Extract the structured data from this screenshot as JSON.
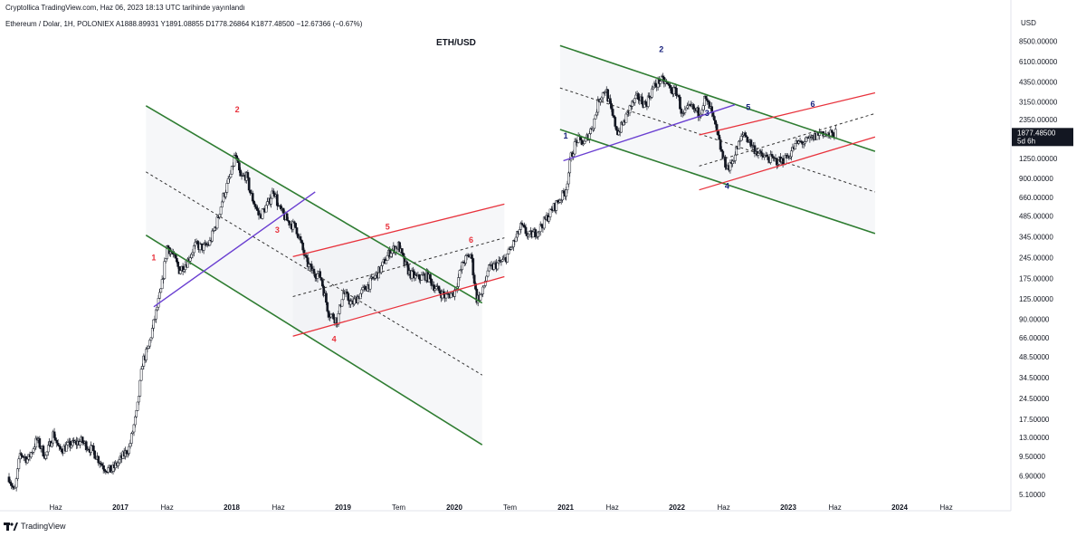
{
  "header": {
    "published_line": "Cryptollica TradingView.com, Haz 06, 2023 18:13 UTC tarihinde yayınlandı",
    "symbol_line": "Ethereum / Dolar, 1H, POLONIEX  A1888.89931  Y1891.08855  D1778.26864  K1877.48500  −12.67366 (−0.67%)"
  },
  "logo_text": "TradingView",
  "chart_data": {
    "type": "candlestick",
    "title": "ETH/USD",
    "currency_label": "USD",
    "y_scale": "log",
    "ylim": [
      4.4,
      11000
    ],
    "xlim": [
      2016.0,
      2025.0
    ],
    "y_ticks": [
      "8500.00000",
      "6100.00000",
      "4350.00000",
      "3150.00000",
      "2350.00000",
      "1250.00000",
      "900.00000",
      "660.00000",
      "485.00000",
      "345.00000",
      "245.00000",
      "175.00000",
      "125.00000",
      "90.00000",
      "66.00000",
      "48.50000",
      "34.50000",
      "24.50000",
      "17.50000",
      "13.00000",
      "9.50000",
      "6.90000",
      "5.10000"
    ],
    "x_ticks": [
      {
        "label": "Haz",
        "x": 2016.42
      },
      {
        "label": "2017",
        "x": 2017.0
      },
      {
        "label": "Haz",
        "x": 2017.42
      },
      {
        "label": "2018",
        "x": 2018.0
      },
      {
        "label": "Haz",
        "x": 2018.42
      },
      {
        "label": "2019",
        "x": 2019.0
      },
      {
        "label": "Tem",
        "x": 2019.5
      },
      {
        "label": "2020",
        "x": 2020.0
      },
      {
        "label": "Tem",
        "x": 2020.5
      },
      {
        "label": "2021",
        "x": 2021.0
      },
      {
        "label": "Haz",
        "x": 2021.42
      },
      {
        "label": "2022",
        "x": 2022.0
      },
      {
        "label": "Haz",
        "x": 2022.42
      },
      {
        "label": "2023",
        "x": 2023.0
      },
      {
        "label": "Haz",
        "x": 2023.42
      },
      {
        "label": "2024",
        "x": 2024.0
      },
      {
        "label": "Haz",
        "x": 2024.42
      }
    ],
    "last_price": {
      "value": 1877.485,
      "label": "1877.48500",
      "countdown": "5d 6h",
      "color": "#131722"
    },
    "price_path": [
      [
        2016.0,
        6.8
      ],
      [
        2016.05,
        5.2
      ],
      [
        2016.1,
        10.0
      ],
      [
        2016.17,
        9.0
      ],
      [
        2016.25,
        12.5
      ],
      [
        2016.33,
        9.5
      ],
      [
        2016.4,
        14.0
      ],
      [
        2016.45,
        10.5
      ],
      [
        2016.55,
        11.5
      ],
      [
        2016.65,
        12.2
      ],
      [
        2016.75,
        10.5
      ],
      [
        2016.85,
        8.0
      ],
      [
        2016.92,
        7.5
      ],
      [
        2017.0,
        9.0
      ],
      [
        2017.08,
        11.0
      ],
      [
        2017.15,
        20.0
      ],
      [
        2017.2,
        45.0
      ],
      [
        2017.25,
        55.0
      ],
      [
        2017.3,
        85.0
      ],
      [
        2017.37,
        150.0
      ],
      [
        2017.42,
        300.0
      ],
      [
        2017.47,
        260.0
      ],
      [
        2017.53,
        200.0
      ],
      [
        2017.6,
        230.0
      ],
      [
        2017.67,
        300.0
      ],
      [
        2017.75,
        290.0
      ],
      [
        2017.8,
        310.0
      ],
      [
        2017.87,
        450.0
      ],
      [
        2017.92,
        650.0
      ],
      [
        2018.0,
        1000.0
      ],
      [
        2018.03,
        1350.0
      ],
      [
        2018.08,
        900.0
      ],
      [
        2018.13,
        950.0
      ],
      [
        2018.17,
        700.0
      ],
      [
        2018.25,
        480.0
      ],
      [
        2018.33,
        600.0
      ],
      [
        2018.38,
        760.0
      ],
      [
        2018.42,
        560.0
      ],
      [
        2018.5,
        450.0
      ],
      [
        2018.58,
        400.0
      ],
      [
        2018.67,
        230.0
      ],
      [
        2018.72,
        200.0
      ],
      [
        2018.8,
        180.0
      ],
      [
        2018.87,
        100.0
      ],
      [
        2018.95,
        88.0
      ],
      [
        2019.0,
        140.0
      ],
      [
        2019.08,
        115.0
      ],
      [
        2019.17,
        140.0
      ],
      [
        2019.25,
        165.0
      ],
      [
        2019.33,
        200.0
      ],
      [
        2019.42,
        270.0
      ],
      [
        2019.5,
        300.0
      ],
      [
        2019.55,
        225.0
      ],
      [
        2019.6,
        190.0
      ],
      [
        2019.67,
        175.0
      ],
      [
        2019.75,
        185.0
      ],
      [
        2019.83,
        150.0
      ],
      [
        2019.92,
        130.0
      ],
      [
        2020.0,
        140.0
      ],
      [
        2020.08,
        230.0
      ],
      [
        2020.15,
        260.0
      ],
      [
        2020.2,
        125.0
      ],
      [
        2020.25,
        135.0
      ],
      [
        2020.3,
        200.0
      ],
      [
        2020.38,
        220.0
      ],
      [
        2020.45,
        235.0
      ],
      [
        2020.55,
        330.0
      ],
      [
        2020.6,
        410.0
      ],
      [
        2020.67,
        350.0
      ],
      [
        2020.75,
        380.0
      ],
      [
        2020.83,
        470.0
      ],
      [
        2020.92,
        600.0
      ],
      [
        2021.0,
        730.0
      ],
      [
        2021.05,
        1300.0
      ],
      [
        2021.1,
        1700.0
      ],
      [
        2021.17,
        1600.0
      ],
      [
        2021.25,
        2200.0
      ],
      [
        2021.3,
        3300.0
      ],
      [
        2021.36,
        3900.0
      ],
      [
        2021.42,
        2500.0
      ],
      [
        2021.47,
        1900.0
      ],
      [
        2021.53,
        2300.0
      ],
      [
        2021.58,
        2900.0
      ],
      [
        2021.65,
        3400.0
      ],
      [
        2021.72,
        3000.0
      ],
      [
        2021.78,
        3900.0
      ],
      [
        2021.85,
        4500.0
      ],
      [
        2021.9,
        4300.0
      ],
      [
        2021.95,
        3800.0
      ],
      [
        2022.0,
        3700.0
      ],
      [
        2022.05,
        2500.0
      ],
      [
        2022.12,
        2900.0
      ],
      [
        2022.2,
        2600.0
      ],
      [
        2022.25,
        3300.0
      ],
      [
        2022.3,
        2800.0
      ],
      [
        2022.35,
        2000.0
      ],
      [
        2022.42,
        1200.0
      ],
      [
        2022.47,
        1050.0
      ],
      [
        2022.53,
        1400.0
      ],
      [
        2022.6,
        1900.0
      ],
      [
        2022.67,
        1550.0
      ],
      [
        2022.75,
        1300.0
      ],
      [
        2022.83,
        1250.0
      ],
      [
        2022.88,
        1200.0
      ],
      [
        2022.95,
        1200.0
      ],
      [
        2023.0,
        1300.0
      ],
      [
        2023.08,
        1600.0
      ],
      [
        2023.17,
        1650.0
      ],
      [
        2023.25,
        1800.0
      ],
      [
        2023.3,
        1950.0
      ],
      [
        2023.35,
        1800.0
      ],
      [
        2023.4,
        1870.0
      ],
      [
        2023.43,
        1877.0
      ]
    ],
    "channels": [
      {
        "name": "",
        "color": "#2f7d32",
        "width": 1.6,
        "dashed": false,
        "p1": [
          2017.23,
          2950
        ],
        "p2": [
          2020.25,
          117
        ]
      },
      {
        "name": "",
        "color": "#2f7d32",
        "width": 1.6,
        "dashed": false,
        "p1": [
          2017.23,
          355
        ],
        "p2": [
          2020.25,
          11.5
        ]
      },
      {
        "name": "",
        "color": "#333333",
        "width": 1.0,
        "dashed": true,
        "p1": [
          2017.23,
          1000
        ],
        "p2": [
          2020.25,
          36
        ]
      },
      {
        "name": "",
        "color": "#2f7d32",
        "width": 1.6,
        "dashed": false,
        "p1": [
          2020.95,
          7900
        ],
        "p2": [
          2023.78,
          1400
        ]
      },
      {
        "name": "",
        "color": "#2f7d32",
        "width": 1.6,
        "dashed": false,
        "p1": [
          2020.95,
          2000
        ],
        "p2": [
          2023.78,
          365
        ]
      },
      {
        "name": "",
        "color": "#333333",
        "width": 1.0,
        "dashed": true,
        "p1": [
          2020.95,
          3950
        ],
        "p2": [
          2023.78,
          720
        ]
      },
      {
        "name": "",
        "color": "#e8323c",
        "width": 1.3,
        "dashed": false,
        "p1": [
          2018.55,
          250
        ],
        "p2": [
          2020.45,
          590
        ]
      },
      {
        "name": "",
        "color": "#e8323c",
        "width": 1.3,
        "dashed": false,
        "p1": [
          2018.55,
          68
        ],
        "p2": [
          2020.45,
          180
        ]
      },
      {
        "name": "",
        "color": "#333333",
        "width": 1.0,
        "dashed": true,
        "p1": [
          2018.55,
          130
        ],
        "p2": [
          2020.45,
          340
        ]
      },
      {
        "name": "",
        "color": "#e8323c",
        "width": 1.3,
        "dashed": false,
        "p1": [
          2022.2,
          1830
        ],
        "p2": [
          2023.78,
          3650
        ]
      },
      {
        "name": "",
        "color": "#e8323c",
        "width": 1.3,
        "dashed": false,
        "p1": [
          2022.2,
          745
        ],
        "p2": [
          2023.78,
          1770
        ]
      },
      {
        "name": "",
        "color": "#333333",
        "width": 1.0,
        "dashed": true,
        "p1": [
          2022.2,
          1100
        ],
        "p2": [
          2023.78,
          2600
        ]
      },
      {
        "name": "",
        "color": "#6a3fd1",
        "width": 1.4,
        "dashed": false,
        "p1": [
          2017.3,
          110
        ],
        "p2": [
          2018.75,
          720
        ]
      },
      {
        "name": "",
        "color": "#6a3fd1",
        "width": 1.4,
        "dashed": false,
        "p1": [
          2020.98,
          1200
        ],
        "p2": [
          2022.52,
          3000
        ]
      }
    ],
    "regions": [
      {
        "x1": 2017.23,
        "x2": 2020.25,
        "top": [
          2950,
          117
        ],
        "bottom": [
          355,
          11.5
        ]
      },
      {
        "x1": 2018.55,
        "x2": 2020.45,
        "top": [
          250,
          590
        ],
        "bottom": [
          68,
          180
        ]
      },
      {
        "x1": 2020.95,
        "x2": 2023.78,
        "top": [
          7900,
          1400
        ],
        "bottom": [
          2000,
          365
        ]
      }
    ],
    "wave_labels": [
      {
        "text": "1",
        "x": 2017.3,
        "y": 235,
        "color": "#e8323c"
      },
      {
        "text": "2",
        "x": 2018.05,
        "y": 2650,
        "color": "#e8323c"
      },
      {
        "text": "3",
        "x": 2018.41,
        "y": 370,
        "color": "#e8323c"
      },
      {
        "text": "4",
        "x": 2018.92,
        "y": 62,
        "color": "#e8323c"
      },
      {
        "text": "5",
        "x": 2019.4,
        "y": 390,
        "color": "#e8323c"
      },
      {
        "text": "6",
        "x": 2020.15,
        "y": 315,
        "color": "#e8323c"
      },
      {
        "text": "1",
        "x": 2021.0,
        "y": 1720,
        "color": "#1a237e"
      },
      {
        "text": "2",
        "x": 2021.86,
        "y": 7100,
        "color": "#1a237e"
      },
      {
        "text": "3",
        "x": 2022.27,
        "y": 2500,
        "color": "#1a237e"
      },
      {
        "text": "4",
        "x": 2022.45,
        "y": 760,
        "color": "#1a237e"
      },
      {
        "text": "5",
        "x": 2022.64,
        "y": 2750,
        "color": "#1a237e"
      },
      {
        "text": "6",
        "x": 2023.22,
        "y": 2900,
        "color": "#1a237e"
      }
    ]
  }
}
